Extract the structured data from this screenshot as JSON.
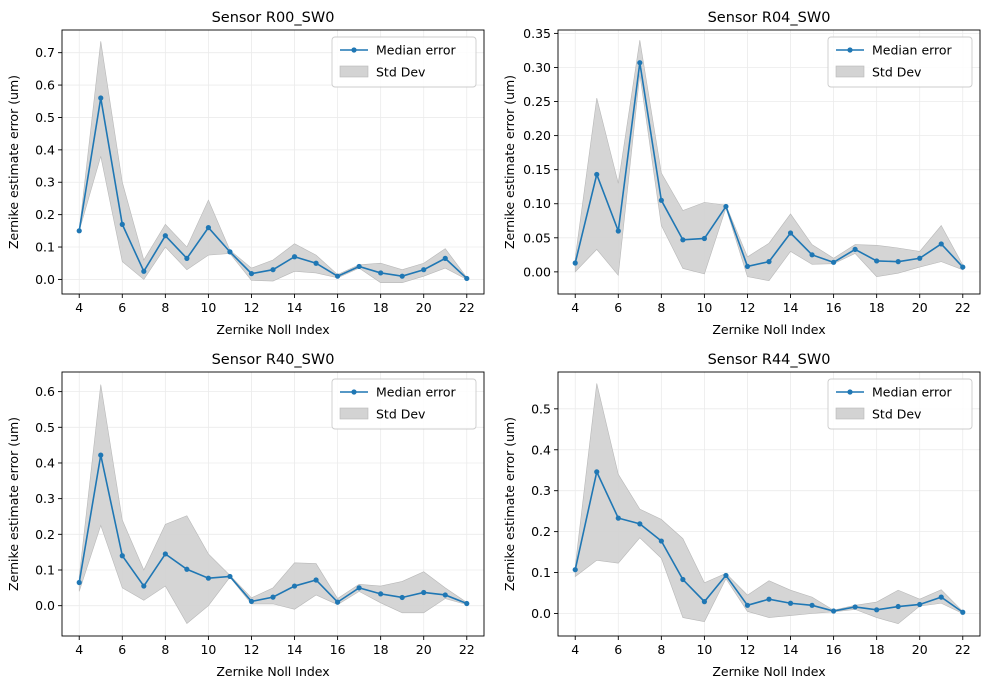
{
  "colors": {
    "line": "#1f77b4",
    "band": "#d3d3d3",
    "band_edge": "#b8b8b8",
    "grid": "#ebebeb"
  },
  "chart_data": [
    {
      "type": "line",
      "title": "Sensor R00_SW0",
      "xlabel": "Zernike Noll Index",
      "ylabel": "Zernike estimate error (um)",
      "x": [
        4,
        5,
        6,
        7,
        8,
        9,
        10,
        11,
        12,
        13,
        14,
        15,
        16,
        17,
        18,
        19,
        20,
        21,
        22
      ],
      "xlim": [
        3.2,
        22.8
      ],
      "xticks": [
        4,
        6,
        8,
        10,
        12,
        14,
        16,
        18,
        20,
        22
      ],
      "xtick_labels": [
        "4",
        "6",
        "8",
        "10",
        "12",
        "14",
        "16",
        "18",
        "20",
        "22"
      ],
      "ylim": [
        -0.045,
        0.77
      ],
      "yticks": [
        0.0,
        0.1,
        0.2,
        0.3,
        0.4,
        0.5,
        0.6,
        0.7
      ],
      "ytick_labels": [
        "0.0",
        "0.1",
        "0.2",
        "0.3",
        "0.4",
        "0.5",
        "0.6",
        "0.7"
      ],
      "series": [
        {
          "name": "Median error",
          "values": [
            0.15,
            0.56,
            0.17,
            0.025,
            0.135,
            0.065,
            0.16,
            0.085,
            0.018,
            0.03,
            0.07,
            0.05,
            0.01,
            0.04,
            0.02,
            0.01,
            0.03,
            0.065,
            0.003
          ]
        },
        {
          "name": "Std Dev",
          "kind": "band",
          "lower": [
            0.15,
            0.38,
            0.055,
            0.0,
            0.1,
            0.03,
            0.075,
            0.08,
            -0.003,
            -0.005,
            0.025,
            0.02,
            0.005,
            0.035,
            -0.01,
            -0.01,
            0.01,
            0.035,
            0.0
          ],
          "upper": [
            0.15,
            0.735,
            0.3,
            0.06,
            0.17,
            0.1,
            0.245,
            0.09,
            0.035,
            0.06,
            0.11,
            0.075,
            0.015,
            0.045,
            0.05,
            0.03,
            0.05,
            0.095,
            0.006
          ]
        }
      ],
      "legend": {
        "position": "upper right",
        "entries": [
          "Median error",
          "Std Dev"
        ]
      },
      "grid": true
    },
    {
      "type": "line",
      "title": "Sensor R04_SW0",
      "xlabel": "Zernike Noll Index",
      "ylabel": "Zernike estimate error (um)",
      "x": [
        4,
        5,
        6,
        7,
        8,
        9,
        10,
        11,
        12,
        13,
        14,
        15,
        16,
        17,
        18,
        19,
        20,
        21,
        22
      ],
      "xlim": [
        3.2,
        22.8
      ],
      "xticks": [
        4,
        6,
        8,
        10,
        12,
        14,
        16,
        18,
        20,
        22
      ],
      "xtick_labels": [
        "4",
        "6",
        "8",
        "10",
        "12",
        "14",
        "16",
        "18",
        "20",
        "22"
      ],
      "ylim": [
        -0.0325,
        0.355
      ],
      "yticks": [
        0.0,
        0.05,
        0.1,
        0.15,
        0.2,
        0.25,
        0.3,
        0.35
      ],
      "ytick_labels": [
        "0.00",
        "0.05",
        "0.10",
        "0.15",
        "0.20",
        "0.25",
        "0.30",
        "0.35"
      ],
      "series": [
        {
          "name": "Median error",
          "values": [
            0.013,
            0.143,
            0.06,
            0.307,
            0.105,
            0.047,
            0.049,
            0.096,
            0.008,
            0.015,
            0.057,
            0.025,
            0.014,
            0.033,
            0.016,
            0.015,
            0.02,
            0.041,
            0.007
          ]
        },
        {
          "name": "Std Dev",
          "kind": "band",
          "lower": [
            0.0,
            0.033,
            -0.005,
            0.29,
            0.068,
            0.005,
            -0.003,
            0.094,
            -0.007,
            -0.013,
            0.03,
            0.011,
            0.012,
            0.027,
            -0.007,
            -0.002,
            0.007,
            0.015,
            0.003
          ],
          "upper": [
            0.02,
            0.255,
            0.13,
            0.34,
            0.145,
            0.09,
            0.102,
            0.098,
            0.022,
            0.042,
            0.085,
            0.04,
            0.02,
            0.04,
            0.039,
            0.035,
            0.03,
            0.068,
            0.01
          ]
        }
      ],
      "legend": {
        "position": "upper right",
        "entries": [
          "Median error",
          "Std Dev"
        ]
      },
      "grid": true
    },
    {
      "type": "line",
      "title": "Sensor R40_SW0",
      "xlabel": "Zernike Noll Index",
      "ylabel": "Zernike estimate error (um)",
      "x": [
        4,
        5,
        6,
        7,
        8,
        9,
        10,
        11,
        12,
        13,
        14,
        15,
        16,
        17,
        18,
        19,
        20,
        21,
        22
      ],
      "xlim": [
        3.2,
        22.8
      ],
      "xticks": [
        4,
        6,
        8,
        10,
        12,
        14,
        16,
        18,
        20,
        22
      ],
      "xtick_labels": [
        "4",
        "6",
        "8",
        "10",
        "12",
        "14",
        "16",
        "18",
        "20",
        "22"
      ],
      "ylim": [
        -0.085,
        0.655
      ],
      "yticks": [
        0.0,
        0.1,
        0.2,
        0.3,
        0.4,
        0.5,
        0.6
      ],
      "ytick_labels": [
        "0.0",
        "0.1",
        "0.2",
        "0.3",
        "0.4",
        "0.5",
        "0.6"
      ],
      "series": [
        {
          "name": "Median error",
          "values": [
            0.065,
            0.422,
            0.14,
            0.055,
            0.145,
            0.102,
            0.077,
            0.082,
            0.012,
            0.024,
            0.055,
            0.072,
            0.01,
            0.05,
            0.033,
            0.023,
            0.037,
            0.03,
            0.006
          ]
        },
        {
          "name": "Std Dev",
          "kind": "band",
          "lower": [
            0.04,
            0.225,
            0.05,
            0.015,
            0.055,
            -0.05,
            0.0,
            0.08,
            0.005,
            0.005,
            -0.01,
            0.03,
            0.003,
            0.04,
            0.008,
            -0.02,
            -0.02,
            0.02,
            0.003
          ],
          "upper": [
            0.08,
            0.62,
            0.24,
            0.1,
            0.228,
            0.252,
            0.145,
            0.085,
            0.022,
            0.05,
            0.12,
            0.118,
            0.02,
            0.06,
            0.055,
            0.068,
            0.095,
            0.05,
            0.009
          ]
        }
      ],
      "legend": {
        "position": "upper right",
        "entries": [
          "Median error",
          "Std Dev"
        ]
      },
      "grid": true
    },
    {
      "type": "line",
      "title": "Sensor R44_SW0",
      "xlabel": "Zernike Noll Index",
      "ylabel": "Zernike estimate error (um)",
      "x": [
        4,
        5,
        6,
        7,
        8,
        9,
        10,
        11,
        12,
        13,
        14,
        15,
        16,
        17,
        18,
        19,
        20,
        21,
        22
      ],
      "xlim": [
        3.2,
        22.8
      ],
      "xticks": [
        4,
        6,
        8,
        10,
        12,
        14,
        16,
        18,
        20,
        22
      ],
      "xtick_labels": [
        "4",
        "6",
        "8",
        "10",
        "12",
        "14",
        "16",
        "18",
        "20",
        "22"
      ],
      "ylim": [
        -0.055,
        0.59
      ],
      "yticks": [
        0.0,
        0.1,
        0.2,
        0.3,
        0.4,
        0.5
      ],
      "ytick_labels": [
        "0.0",
        "0.1",
        "0.2",
        "0.3",
        "0.4",
        "0.5"
      ],
      "series": [
        {
          "name": "Median error",
          "values": [
            0.107,
            0.346,
            0.233,
            0.219,
            0.177,
            0.083,
            0.029,
            0.093,
            0.02,
            0.035,
            0.025,
            0.02,
            0.006,
            0.016,
            0.009,
            0.017,
            0.022,
            0.04,
            0.003
          ]
        },
        {
          "name": "Std Dev",
          "kind": "band",
          "lower": [
            0.09,
            0.13,
            0.123,
            0.185,
            0.135,
            -0.01,
            -0.02,
            0.085,
            0.005,
            -0.01,
            -0.005,
            0.0,
            0.004,
            0.01,
            -0.01,
            -0.025,
            0.018,
            0.025,
            0.0
          ],
          "upper": [
            0.115,
            0.562,
            0.34,
            0.255,
            0.23,
            0.183,
            0.075,
            0.098,
            0.045,
            0.08,
            0.057,
            0.04,
            0.008,
            0.02,
            0.028,
            0.057,
            0.035,
            0.058,
            0.005
          ]
        }
      ],
      "legend": {
        "position": "upper right",
        "entries": [
          "Median error",
          "Std Dev"
        ]
      },
      "grid": true
    }
  ]
}
